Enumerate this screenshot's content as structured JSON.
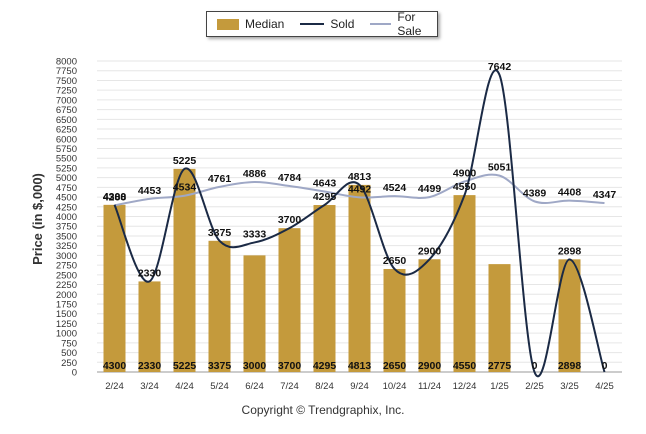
{
  "chart_data": {
    "type": "bar",
    "categories": [
      "2/24",
      "3/24",
      "4/24",
      "5/24",
      "6/24",
      "7/24",
      "8/24",
      "9/24",
      "10/24",
      "11/24",
      "12/24",
      "1/25",
      "2/25",
      "3/25",
      "4/25"
    ],
    "ylabel": "Price (in $,000)",
    "ylim": [
      0,
      8000
    ],
    "yticks": [
      0,
      250,
      500,
      750,
      1000,
      1250,
      1500,
      1750,
      2000,
      2250,
      2500,
      2750,
      3000,
      3250,
      3500,
      3750,
      4000,
      4250,
      4500,
      4750,
      5000,
      5250,
      5500,
      5750,
      6000,
      6250,
      6500,
      6750,
      7000,
      7250,
      7500,
      7750,
      8000
    ],
    "ytick_labels": [
      0,
      250,
      500,
      750,
      1000,
      1250,
      1500,
      1750,
      2000,
      2250,
      2500,
      2750,
      3000,
      3250,
      3500,
      3750,
      4000,
      4250,
      4500,
      4750,
      5000,
      5250,
      5500,
      5750,
      6000,
      6250,
      6500,
      6750,
      7000,
      7250,
      7500,
      7750,
      8000
    ],
    "grid": true,
    "legend": "top-center",
    "series": [
      {
        "name": "Median",
        "kind": "bar",
        "color": "#c49a3c",
        "values": [
          4300,
          2330,
          5225,
          3375,
          3000,
          3700,
          4295,
          4813,
          2650,
          2900,
          4550,
          2775,
          0,
          2898,
          0
        ]
      },
      {
        "name": "Sold",
        "kind": "line",
        "color": "#1b2a45",
        "values": [
          4300,
          2330,
          5225,
          3375,
          3333,
          3700,
          4295,
          4813,
          2650,
          2900,
          4550,
          7642,
          0,
          2898,
          0
        ]
      },
      {
        "name": "For Sale",
        "kind": "line",
        "color": "#9fa8c6",
        "values": [
          4288,
          4453,
          4534,
          4761,
          4886,
          4784,
          4643,
          4492,
          4524,
          4499,
          4900,
          5051,
          4389,
          4408,
          4347
        ]
      }
    ],
    "data_labels": {
      "bar_bottom": [
        "4300",
        "2330",
        "5225",
        "3375",
        "3000",
        "3700",
        "4295",
        "4813",
        "2650",
        "2900",
        "4550",
        "2775",
        "0",
        "2898",
        "0"
      ],
      "sold": [
        "4300",
        "2330",
        "5225",
        "3375",
        "3333",
        "3700",
        "4295",
        "4813",
        "2650",
        "2900",
        "4550",
        "7642",
        "",
        "2898",
        ""
      ],
      "for_sale": [
        "4288",
        "4453",
        "4534",
        "4761",
        "4886",
        "4784",
        "4643",
        "4492",
        "4524",
        "4499",
        "4900",
        "5051",
        "4389",
        "4408",
        "4347"
      ]
    }
  },
  "legend": {
    "median": "Median",
    "sold": "Sold",
    "for_sale": "For Sale"
  },
  "footer": {
    "copyright": "Copyright © Trendgraphix, Inc."
  }
}
